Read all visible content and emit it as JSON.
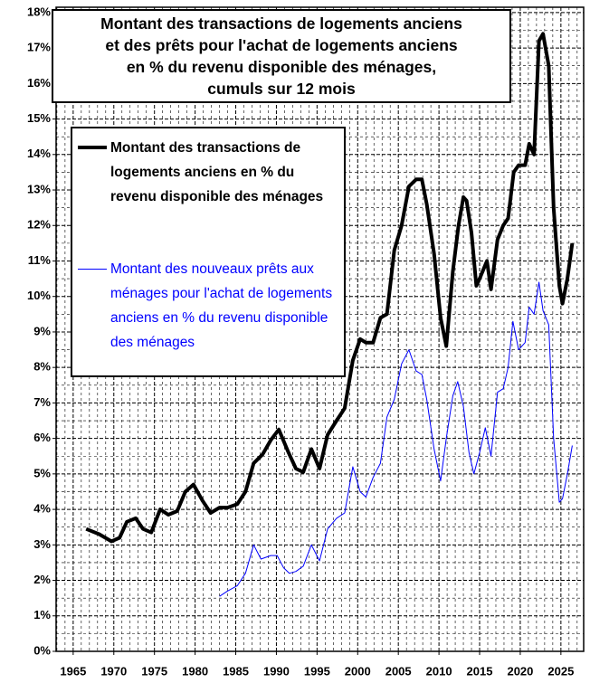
{
  "chart_data": {
    "type": "line",
    "title": [
      "Montant des transactions de logements anciens",
      "et des prêts pour l'achat de logements anciens",
      "en % du revenu disponible des ménages,",
      "cumuls sur 12 mois"
    ],
    "xlim": [
      1962.9,
      2027.8
    ],
    "xticks": [
      1965,
      1970,
      1975,
      1980,
      1985,
      1990,
      1995,
      2000,
      2005,
      2010,
      2015,
      2020,
      2025
    ],
    "ylim": [
      0,
      18.15
    ],
    "yticks": [
      {
        "value": 0,
        "label": "0%"
      },
      {
        "value": 1,
        "label": "1%"
      },
      {
        "value": 2,
        "label": "2%"
      },
      {
        "value": 3,
        "label": "3%"
      },
      {
        "value": 4,
        "label": "4%"
      },
      {
        "value": 5,
        "label": "5%"
      },
      {
        "value": 6,
        "label": "6%"
      },
      {
        "value": 7,
        "label": "7%"
      },
      {
        "value": 8,
        "label": "8%"
      },
      {
        "value": 9,
        "label": "9%"
      },
      {
        "value": 10,
        "label": "10%"
      },
      {
        "value": 11,
        "label": "11%"
      },
      {
        "value": 12,
        "label": "12%"
      },
      {
        "value": 13,
        "label": "13%"
      },
      {
        "value": 14,
        "label": "14%"
      },
      {
        "value": 15,
        "label": "15%"
      },
      {
        "value": 16,
        "label": "16%"
      },
      {
        "value": 17,
        "label": "17%"
      },
      {
        "value": 18,
        "label": "18%"
      }
    ],
    "grid": true,
    "series": [
      {
        "name": "Montant des transactions de logements anciens en % du revenu disponible des ménages",
        "color": "#000000",
        "width": 4,
        "x": [
          1966.6,
          1968.2,
          1969.7,
          1970.7,
          1971.6,
          1972.7,
          1973.6,
          1974.6,
          1975.7,
          1976.7,
          1977.8,
          1978.8,
          1979.8,
          1980.9,
          1981.9,
          1983.0,
          1984.0,
          1985.2,
          1986.2,
          1987.2,
          1988.3,
          1989.3,
          1990.3,
          1991.4,
          1992.4,
          1993.3,
          1994.3,
          1995.3,
          1996.3,
          1997.4,
          1998.4,
          1999.4,
          2000.3,
          2001.0,
          2001.9,
          2002.8,
          2003.6,
          2004.5,
          2005.4,
          2006.3,
          2007.2,
          2007.9,
          2008.5,
          2009.4,
          2010.2,
          2010.9,
          2011.7,
          2012.4,
          2013.0,
          2013.4,
          2014.0,
          2014.6,
          2015.0,
          2015.9,
          2016.4,
          2017.2,
          2017.9,
          2018.5,
          2019.2,
          2019.8,
          2020.6,
          2021.1,
          2021.7,
          2022.3,
          2022.8,
          2023.5,
          2024.1,
          2024.8,
          2025.2,
          2025.8,
          2026.4
        ],
        "values": [
          3.45,
          3.3,
          3.1,
          3.2,
          3.65,
          3.75,
          3.45,
          3.35,
          4.0,
          3.85,
          3.95,
          4.5,
          4.7,
          4.25,
          3.9,
          4.05,
          4.05,
          4.15,
          4.5,
          5.3,
          5.55,
          5.95,
          6.25,
          5.65,
          5.15,
          5.05,
          5.7,
          5.15,
          6.1,
          6.5,
          6.85,
          8.2,
          8.8,
          8.7,
          8.7,
          9.4,
          9.5,
          11.3,
          12.0,
          13.1,
          13.3,
          13.3,
          12.6,
          11.2,
          9.4,
          8.6,
          10.7,
          12.0,
          12.8,
          12.7,
          11.8,
          10.3,
          10.5,
          11.0,
          10.2,
          11.6,
          12.0,
          12.2,
          13.5,
          13.7,
          13.7,
          14.3,
          14.0,
          17.2,
          17.4,
          16.5,
          12.5,
          10.3,
          9.8,
          10.5,
          11.5
        ]
      },
      {
        "name": "Montant des nouveaux prêts aux ménages pour l'achat de logements anciens en % du revenu disponible des ménages",
        "color": "#0000ff",
        "width": 1,
        "x": [
          1983.0,
          1984.0,
          1985.2,
          1986.2,
          1987.2,
          1988.1,
          1989.3,
          1990.1,
          1990.9,
          1991.6,
          1992.4,
          1993.3,
          1994.3,
          1995.3,
          1996.3,
          1997.4,
          1998.4,
          1999.4,
          2000.3,
          2001.0,
          2001.9,
          2002.8,
          2003.6,
          2004.5,
          2005.4,
          2006.3,
          2007.2,
          2007.9,
          2008.5,
          2009.4,
          2010.2,
          2010.9,
          2011.7,
          2012.3,
          2013.0,
          2013.7,
          2014.3,
          2015.0,
          2015.7,
          2016.4,
          2017.2,
          2017.9,
          2018.5,
          2019.1,
          2019.8,
          2020.6,
          2021.1,
          2021.7,
          2022.3,
          2022.8,
          2023.5,
          2024.1,
          2024.8,
          2025.2,
          2025.8,
          2026.4
        ],
        "values": [
          1.55,
          1.7,
          1.85,
          2.2,
          3.0,
          2.6,
          2.7,
          2.7,
          2.35,
          2.2,
          2.25,
          2.4,
          3.0,
          2.55,
          3.45,
          3.75,
          3.9,
          5.2,
          4.5,
          4.35,
          4.9,
          5.3,
          6.6,
          7.1,
          8.1,
          8.5,
          7.9,
          7.8,
          7.1,
          5.7,
          4.8,
          6.0,
          7.2,
          7.6,
          6.9,
          5.6,
          5.0,
          5.6,
          6.3,
          5.5,
          7.3,
          7.4,
          8.0,
          9.3,
          8.5,
          8.7,
          9.7,
          9.5,
          10.4,
          9.6,
          9.2,
          6.0,
          4.2,
          4.3,
          5.0,
          5.8
        ]
      }
    ]
  }
}
